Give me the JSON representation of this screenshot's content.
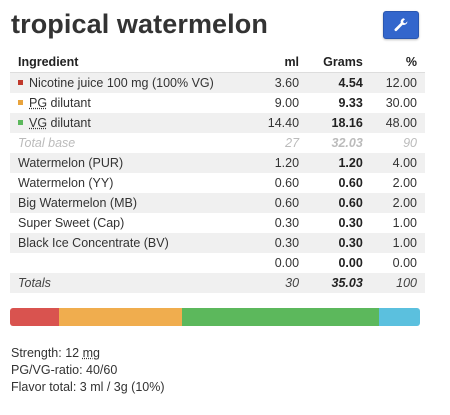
{
  "title": "tropical watermelon",
  "headers": {
    "ingredient": "Ingredient",
    "ml": "ml",
    "grams": "Grams",
    "pct": "%"
  },
  "base_rows": [
    {
      "name": "Nicotine juice 100 mg (100% VG)",
      "ml": "3.60",
      "grams": "4.54",
      "pct": "12.00",
      "color": "#c0392b"
    },
    {
      "name_abbr": "PG",
      "name_rest": " dilutant",
      "ml": "9.00",
      "grams": "9.33",
      "pct": "30.00",
      "color": "#e8a33d"
    },
    {
      "name_abbr": "VG",
      "name_rest": " dilutant",
      "ml": "14.40",
      "grams": "18.16",
      "pct": "48.00",
      "color": "#5cb85c"
    }
  ],
  "total_base": {
    "name": "Total base",
    "ml": "27",
    "grams": "32.03",
    "pct": "90"
  },
  "flavor_rows": [
    {
      "name": "Watermelon (PUR)",
      "ml": "1.20",
      "grams": "1.20",
      "pct": "4.00"
    },
    {
      "name": "Watermelon (YY)",
      "ml": "0.60",
      "grams": "0.60",
      "pct": "2.00"
    },
    {
      "name": "Big Watermelon (MB)",
      "ml": "0.60",
      "grams": "0.60",
      "pct": "2.00"
    },
    {
      "name": "Super Sweet (Cap)",
      "ml": "0.30",
      "grams": "0.30",
      "pct": "1.00"
    },
    {
      "name": "Black Ice Concentrate (BV)",
      "ml": "0.30",
      "grams": "0.30",
      "pct": "1.00"
    },
    {
      "name": "",
      "ml": "0.00",
      "grams": "0.00",
      "pct": "0.00"
    }
  ],
  "totals": {
    "name": "Totals",
    "ml": "30",
    "grams": "35.03",
    "pct": "100"
  },
  "bar_segments": [
    {
      "label": "Nicotine",
      "pct": 12,
      "color": "#d9534f"
    },
    {
      "label": "PG",
      "pct": 30,
      "color": "#f0ad4e"
    },
    {
      "label": "VG",
      "pct": 48,
      "color": "#5cb85c"
    },
    {
      "label": "Flavor",
      "pct": 10,
      "color": "#5bc0de"
    }
  ],
  "info": {
    "strength_label": "Strength: 12 ",
    "strength_unit": "mg",
    "ratio": "PG/VG-ratio: 40/60",
    "flavor_total": "Flavor total: 3 ml / 3g (10%)"
  },
  "colors": {
    "button": "#3366cc"
  }
}
